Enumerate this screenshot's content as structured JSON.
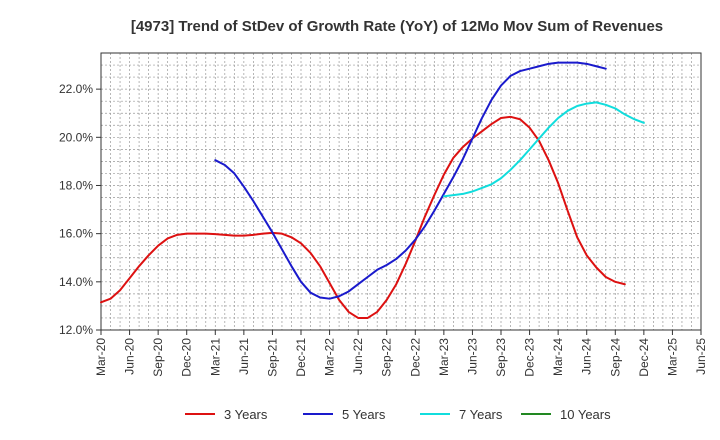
{
  "chart_data": {
    "type": "line",
    "title": "[4973]  Trend of StDev of Growth Rate (YoY) of 12Mo Mov Sum of Revenues",
    "xlabel": "",
    "ylabel": "",
    "ylim": [
      12.0,
      23.5
    ],
    "yticks": [
      "12.0%",
      "14.0%",
      "16.0%",
      "18.0%",
      "20.0%",
      "22.0%"
    ],
    "ytick_values": [
      12,
      14,
      16,
      18,
      20,
      22
    ],
    "xticks": [
      "Mar-20",
      "Jun-20",
      "Sep-20",
      "Dec-20",
      "Mar-21",
      "Jun-21",
      "Sep-21",
      "Dec-21",
      "Mar-22",
      "Jun-22",
      "Sep-22",
      "Dec-22",
      "Mar-23",
      "Jun-23",
      "Sep-23",
      "Dec-23",
      "Mar-24",
      "Jun-24",
      "Sep-24",
      "Dec-24",
      "Mar-25",
      "Jun-25"
    ],
    "grid": true,
    "legend_position": "bottom",
    "series": [
      {
        "name": "3 Years",
        "color": "#dd1111",
        "start_index": 0,
        "values": [
          13.15,
          13.3,
          13.65,
          14.15,
          14.65,
          15.1,
          15.5,
          15.8,
          15.95,
          16.0,
          16.0,
          16.0,
          15.98,
          15.95,
          15.92,
          15.92,
          15.95,
          16.0,
          16.03,
          16.0,
          15.85,
          15.6,
          15.2,
          14.65,
          13.95,
          13.25,
          12.75,
          12.5,
          12.5,
          12.75,
          13.25,
          13.9,
          14.75,
          15.7,
          16.7,
          17.6,
          18.45,
          19.15,
          19.6,
          19.95,
          20.25,
          20.55,
          20.8,
          20.85,
          20.75,
          20.4,
          19.85,
          19.05,
          18.1,
          16.95,
          15.85,
          15.1,
          14.6,
          14.2,
          14.0,
          13.9
        ]
      },
      {
        "name": "5 Years",
        "color": "#1a1acc",
        "start_index": 12,
        "values": [
          19.05,
          18.85,
          18.5,
          17.95,
          17.35,
          16.7,
          16.05,
          15.35,
          14.65,
          14.0,
          13.55,
          13.35,
          13.3,
          13.4,
          13.6,
          13.9,
          14.2,
          14.5,
          14.7,
          14.95,
          15.3,
          15.75,
          16.3,
          16.95,
          17.65,
          18.35,
          19.1,
          19.95,
          20.8,
          21.55,
          22.15,
          22.55,
          22.75,
          22.85,
          22.95,
          23.05,
          23.1,
          23.1,
          23.1,
          23.05,
          22.95,
          22.85
        ]
      },
      {
        "name": "7 Years",
        "color": "#11dddd",
        "start_index": 36,
        "values": [
          17.55,
          17.6,
          17.65,
          17.75,
          17.9,
          18.05,
          18.3,
          18.65,
          19.05,
          19.5,
          19.95,
          20.4,
          20.8,
          21.1,
          21.3,
          21.4,
          21.45,
          21.35,
          21.2,
          20.95,
          20.75,
          20.6
        ]
      },
      {
        "name": "10 Years",
        "color": "#228822",
        "start_index": 0,
        "values": []
      }
    ]
  }
}
